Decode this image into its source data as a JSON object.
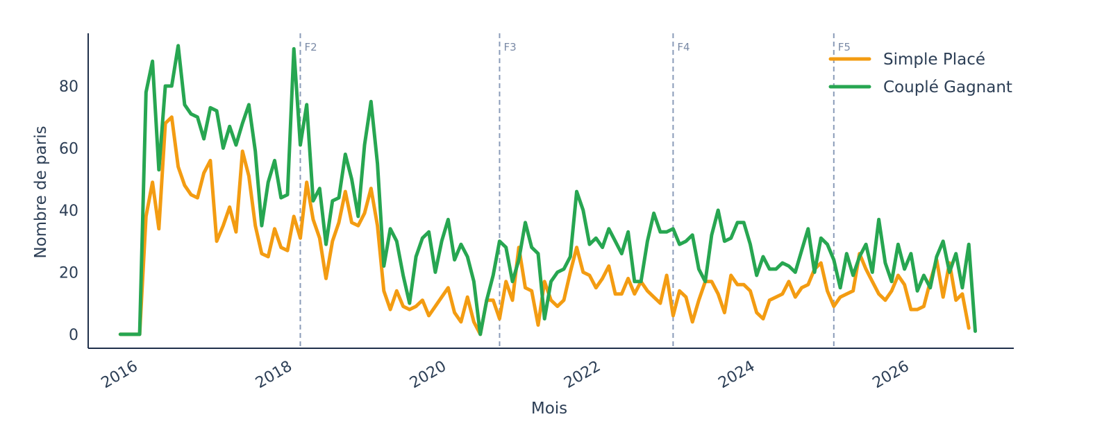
{
  "chart_data": {
    "type": "line",
    "xlabel": "Mois",
    "ylabel": "Nombre de paris",
    "x_tick_labels": [
      "2016",
      "2018",
      "2020",
      "2022",
      "2024",
      "2026"
    ],
    "x_tick_years": [
      2016,
      2018,
      2020,
      2022,
      2024,
      2026
    ],
    "y_ticks": [
      0,
      20,
      40,
      60,
      80
    ],
    "x_range": [
      "2015-06",
      "2027-06"
    ],
    "ylim": [
      -4.5,
      97
    ],
    "grid": false,
    "legend_position": "top-right",
    "phase_markers": [
      {
        "label": "F2",
        "date": "2018-03"
      },
      {
        "label": "F3",
        "date": "2020-10"
      },
      {
        "label": "F4",
        "date": "2023-01"
      },
      {
        "label": "F5",
        "date": "2025-02"
      }
    ],
    "x_start": "2015-11",
    "x_step": "1 month",
    "series": [
      {
        "name": "Simple Placé",
        "color": "#f39c12",
        "values": [
          0,
          0,
          0,
          0,
          38,
          49,
          34,
          68,
          70,
          54,
          48,
          45,
          44,
          52,
          56,
          30,
          35,
          41,
          33,
          59,
          51,
          35,
          26,
          25,
          34,
          28,
          27,
          38,
          31,
          49,
          37,
          31,
          18,
          30,
          36,
          46,
          36,
          35,
          39,
          47,
          35,
          14,
          8,
          14,
          9,
          8,
          9,
          11,
          6,
          9,
          12,
          15,
          7,
          4,
          12,
          4,
          0,
          11,
          11,
          5,
          17,
          11,
          28,
          15,
          14,
          3,
          17,
          11,
          9,
          11,
          20,
          28,
          20,
          19,
          15,
          18,
          22,
          13,
          13,
          18,
          13,
          17,
          14,
          12,
          10,
          19,
          6,
          14,
          12,
          4,
          11,
          17,
          17,
          13,
          7,
          19,
          16,
          16,
          14,
          7,
          5,
          11,
          12,
          13,
          17,
          12,
          15,
          16,
          21,
          23,
          14,
          9,
          12,
          13,
          14,
          26,
          21,
          17,
          13,
          11,
          14,
          19,
          16,
          8,
          8,
          9,
          17,
          24,
          12,
          23,
          11,
          13,
          2
        ]
      },
      {
        "name": "Couplé Gagnant",
        "color": "#27a651",
        "values": [
          0,
          0,
          0,
          0,
          78,
          88,
          53,
          80,
          80,
          93,
          74,
          71,
          70,
          63,
          73,
          72,
          60,
          67,
          61,
          68,
          74,
          59,
          35,
          49,
          56,
          44,
          45,
          92,
          61,
          74,
          43,
          47,
          29,
          43,
          44,
          58,
          50,
          38,
          61,
          75,
          55,
          22,
          34,
          30,
          19,
          10,
          25,
          31,
          33,
          20,
          30,
          37,
          24,
          29,
          25,
          17,
          0,
          11,
          19,
          30,
          28,
          17,
          24,
          36,
          28,
          26,
          5,
          17,
          20,
          21,
          25,
          46,
          40,
          29,
          31,
          28,
          34,
          30,
          26,
          33,
          17,
          17,
          30,
          39,
          33,
          33,
          34,
          29,
          30,
          32,
          21,
          17,
          32,
          40,
          30,
          31,
          36,
          36,
          29,
          19,
          25,
          21,
          21,
          23,
          22,
          20,
          27,
          34,
          20,
          31,
          29,
          24,
          15,
          26,
          19,
          25,
          29,
          20,
          37,
          23,
          17,
          29,
          21,
          26,
          14,
          19,
          15,
          25,
          30,
          20,
          26,
          15,
          29,
          1
        ]
      }
    ]
  }
}
